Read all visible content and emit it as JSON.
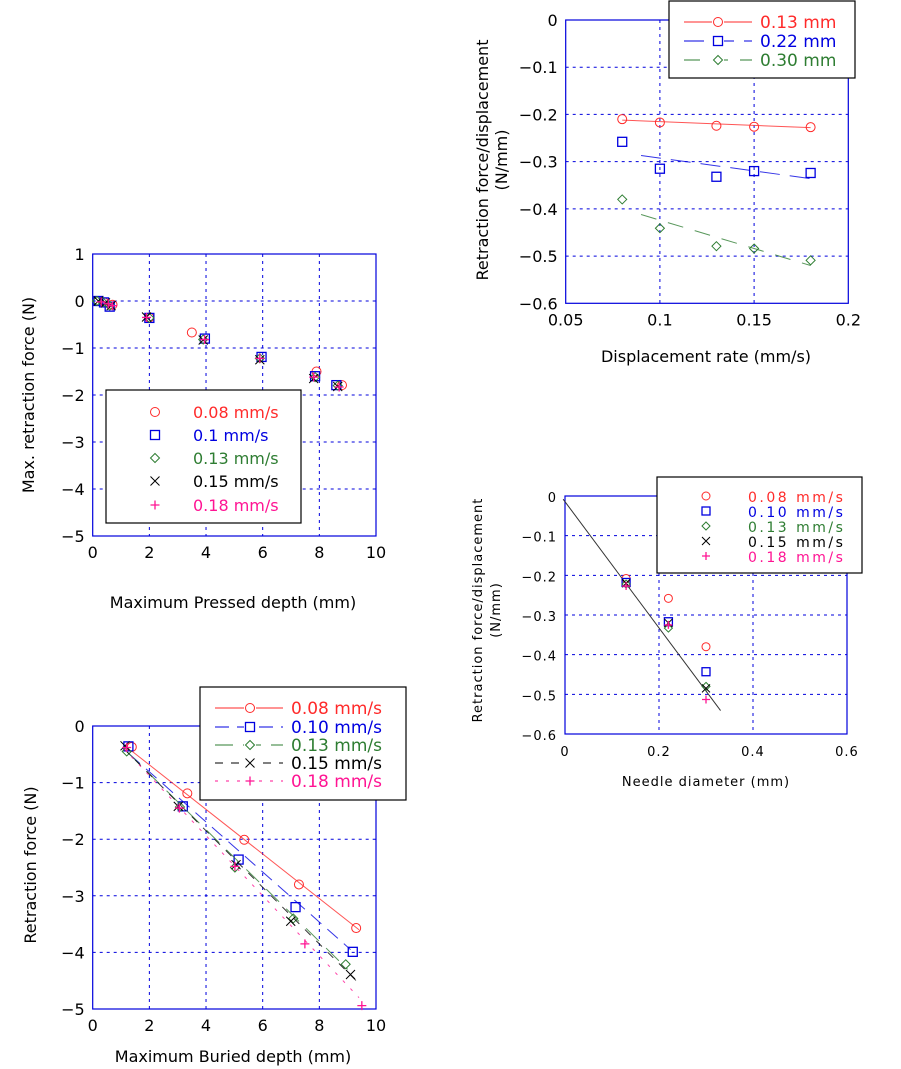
{
  "colors": {
    "red": "#ff2a2a",
    "blue": "#0000e0",
    "green": "#2e7d32",
    "black": "#000000",
    "pink": "#ff1493",
    "grid": "#0000dd"
  },
  "chart_data": [
    {
      "type": "scatter",
      "xlabel": "Maximum Pressed depth (mm)",
      "ylabel": "Max. retraction force (N)",
      "xlim": [
        0,
        10
      ],
      "ylim": [
        -5,
        1
      ],
      "xticks": [
        0,
        2,
        4,
        6,
        8,
        10
      ],
      "xtick_labels": [
        "0",
        "2",
        "4",
        "6",
        "8",
        "10"
      ],
      "yticks": [
        1,
        0,
        -1,
        -2,
        -3,
        -4,
        -5
      ],
      "ytick_labels": [
        "1",
        "0",
        "−1",
        "−2",
        "−3",
        "−4",
        "−5"
      ],
      "grid": true,
      "legend": "bottom-left",
      "series": [
        {
          "name": "0.08 mm/s",
          "marker": "circle",
          "color": "red",
          "x": [
            0.2,
            0.4,
            0.7,
            2.0,
            3.5,
            7.9,
            8.8
          ],
          "y": [
            0,
            -0.03,
            -0.08,
            -0.35,
            -0.67,
            -1.5,
            -1.79
          ]
        },
        {
          "name": "0.1 mm/s",
          "marker": "square",
          "color": "blue",
          "x": [
            0.2,
            0.4,
            0.6,
            2.0,
            3.96,
            5.96,
            7.85,
            8.6
          ],
          "y": [
            0,
            -0.03,
            -0.12,
            -0.36,
            -0.8,
            -1.19,
            -1.6,
            -1.79
          ]
        },
        {
          "name": "0.13 mm/s",
          "marker": "diamond",
          "color": "green",
          "x": [
            0.15,
            0.35,
            0.6,
            2.0,
            3.9,
            5.9,
            7.85,
            8.65
          ],
          "y": [
            0,
            -0.02,
            -0.1,
            -0.36,
            -0.82,
            -1.22,
            -1.62,
            -1.8
          ]
        },
        {
          "name": "0.15 mm/s",
          "marker": "x",
          "color": "black",
          "x": [
            0.2,
            0.45,
            0.65,
            1.9,
            3.9,
            5.9,
            7.8,
            8.65
          ],
          "y": [
            0,
            -0.04,
            -0.1,
            -0.34,
            -0.83,
            -1.25,
            -1.65,
            -1.82
          ]
        },
        {
          "name": "0.18 mm/s",
          "marker": "plus",
          "color": "pink",
          "x": [
            0.3,
            0.55,
            0.7,
            1.9,
            3.95,
            5.9,
            7.8,
            8.7
          ],
          "y": [
            -0.02,
            -0.06,
            -0.1,
            -0.35,
            -0.82,
            -1.22,
            -1.62,
            -1.83
          ]
        }
      ]
    },
    {
      "type": "line",
      "xlabel": "Maximum Buried depth (mm)",
      "ylabel": "Retraction force (N)",
      "xlim": [
        0,
        10
      ],
      "ylim": [
        -5,
        0
      ],
      "xticks": [
        0,
        2,
        4,
        6,
        8,
        10
      ],
      "xtick_labels": [
        "0",
        "2",
        "4",
        "6",
        "8",
        "10"
      ],
      "yticks": [
        0,
        -1,
        -2,
        -3,
        -4,
        -5
      ],
      "ytick_labels": [
        "0",
        "−1",
        "−2",
        "−3",
        "−4",
        "−5"
      ],
      "grid": true,
      "legend": "top-right",
      "series": [
        {
          "name": "0.08 mm/s",
          "marker": "circle",
          "color": "red",
          "dash": "",
          "x": [
            1.38,
            3.34,
            5.35,
            7.28,
            9.3
          ],
          "y": [
            -0.37,
            -1.19,
            -2.01,
            -2.8,
            -3.57
          ],
          "fit": [
            [
              1.4,
              -0.45
            ],
            [
              9.4,
              -3.6
            ]
          ]
        },
        {
          "name": "0.10 mm/s",
          "marker": "square",
          "color": "blue",
          "dash": "14,8",
          "x": [
            1.26,
            3.18,
            5.15,
            7.16,
            9.18
          ],
          "y": [
            -0.36,
            -1.42,
            -2.36,
            -3.2,
            -3.99
          ],
          "fit": [
            [
              1.3,
              -0.5
            ],
            [
              9.1,
              -3.95
            ]
          ]
        },
        {
          "name": "0.13 mm/s",
          "marker": "diamond",
          "color": "green",
          "dash": "18,10",
          "x": [
            1.2,
            3.08,
            5.02,
            7.08,
            8.93
          ],
          "y": [
            -0.45,
            -1.43,
            -2.5,
            -3.4,
            -4.21
          ],
          "fit": [
            [
              1.2,
              -0.45
            ],
            [
              9.0,
              -4.3
            ]
          ]
        },
        {
          "name": "0.15 mm/s",
          "marker": "x",
          "color": "black",
          "dash": "8,8",
          "x": [
            1.14,
            3.02,
            5.06,
            6.99,
            9.1
          ],
          "y": [
            -0.35,
            -1.42,
            -2.45,
            -3.45,
            -4.39
          ],
          "fit": [
            [
              1.1,
              -0.4
            ],
            [
              9.3,
              -4.5
            ]
          ]
        },
        {
          "name": "0.18 mm/s",
          "marker": "plus",
          "color": "pink",
          "dash": "3,8",
          "x": [
            1.2,
            3.06,
            5.02,
            7.49,
            9.5
          ],
          "y": [
            -0.38,
            -1.45,
            -2.48,
            -3.85,
            -4.94
          ],
          "fit": [
            [
              1.1,
              -0.4
            ],
            [
              9.4,
              -4.8
            ]
          ]
        }
      ]
    },
    {
      "type": "line",
      "xlabel": "Displacement rate (mm/s)",
      "ylabel": [
        "Retraction force/displacement",
        "(N/mm)"
      ],
      "xlim": [
        0.05,
        0.2
      ],
      "ylim": [
        -0.6,
        0
      ],
      "xticks": [
        0.05,
        0.1,
        0.15,
        0.2
      ],
      "xtick_labels": [
        "0.05",
        "0.1",
        "0.15",
        "0.2"
      ],
      "yticks": [
        0,
        -0.1,
        -0.2,
        -0.3,
        -0.4,
        -0.5,
        -0.6
      ],
      "ytick_labels": [
        "0",
        "−0.1",
        "−0.2",
        "−0.3",
        "−0.4",
        "−0.5",
        "−0.6"
      ],
      "grid": true,
      "legend": "top-right",
      "series": [
        {
          "name": "0.13 mm",
          "marker": "circle",
          "color": "red",
          "dash": "",
          "x": [
            0.08,
            0.1,
            0.13,
            0.15,
            0.18
          ],
          "y": [
            -0.21,
            -0.217,
            -0.224,
            -0.226,
            -0.227
          ],
          "fit": [
            [
              0.08,
              -0.212
            ],
            [
              0.18,
              -0.228
            ]
          ]
        },
        {
          "name": "0.22 mm",
          "marker": "square",
          "color": "blue",
          "dash": "20,10",
          "x": [
            0.08,
            0.1,
            0.13,
            0.15,
            0.18
          ],
          "y": [
            -0.258,
            -0.315,
            -0.332,
            -0.32,
            -0.324
          ],
          "fit": [
            [
              0.09,
              -0.287
            ],
            [
              0.18,
              -0.336
            ]
          ]
        },
        {
          "name": "0.30 mm",
          "marker": "diamond",
          "color": "green",
          "dash": "16,12",
          "x": [
            0.08,
            0.1,
            0.13,
            0.15,
            0.18
          ],
          "y": [
            -0.38,
            -0.441,
            -0.479,
            -0.484,
            -0.509
          ],
          "fit": [
            [
              0.09,
              -0.412
            ],
            [
              0.18,
              -0.52
            ]
          ]
        }
      ]
    },
    {
      "type": "scatter",
      "xlabel": "Needle diameter (mm)",
      "ylabel": [
        "Retraction force/displacement",
        "(N/mm)"
      ],
      "xlim": [
        0,
        0.6
      ],
      "ylim": [
        -0.6,
        0
      ],
      "xticks": [
        0,
        0.2,
        0.4,
        0.6
      ],
      "xtick_labels": [
        "0",
        "0.2",
        "0.4",
        "0.6"
      ],
      "yticks": [
        0,
        -0.1,
        -0.2,
        -0.3,
        -0.4,
        -0.5,
        -0.6
      ],
      "ytick_labels": [
        "0",
        "−0.1",
        "−0.2",
        "−0.3",
        "−0.4",
        "−0.5",
        "−0.6"
      ],
      "grid": true,
      "legend": "top-right",
      "fit": [
        [
          -0.004,
          -0.008
        ],
        [
          0.331,
          -0.541
        ]
      ],
      "series": [
        {
          "name": "0.08 mm/s",
          "marker": "circle",
          "color": "red",
          "x": [
            0.13,
            0.22,
            0.3
          ],
          "y": [
            -0.208,
            -0.258,
            -0.38
          ]
        },
        {
          "name": "0.10 mm/s",
          "marker": "square",
          "color": "blue",
          "x": [
            0.13,
            0.22,
            0.3
          ],
          "y": [
            -0.218,
            -0.317,
            -0.443
          ]
        },
        {
          "name": "0.13 mm/s",
          "marker": "diamond",
          "color": "green",
          "x": [
            0.13,
            0.22,
            0.3
          ],
          "y": [
            -0.222,
            -0.333,
            -0.48
          ]
        },
        {
          "name": "0.15 mm/s",
          "marker": "x",
          "color": "black",
          "x": [
            0.13,
            0.22,
            0.3
          ],
          "y": [
            -0.22,
            -0.32,
            -0.485
          ]
        },
        {
          "name": "0.18 mm/s",
          "marker": "plus",
          "color": "pink",
          "x": [
            0.13,
            0.22,
            0.3
          ],
          "y": [
            -0.227,
            -0.325,
            -0.513
          ]
        }
      ]
    }
  ]
}
